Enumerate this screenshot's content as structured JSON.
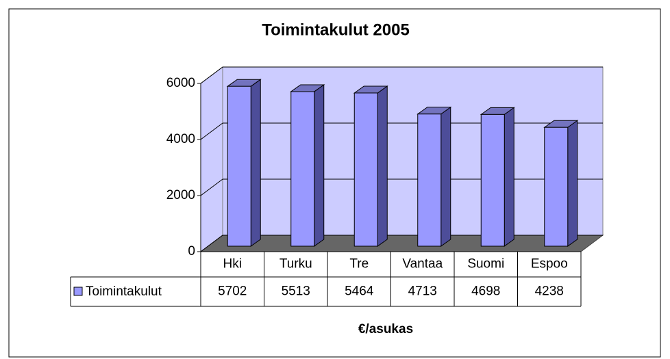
{
  "chart_data": {
    "type": "bar3d",
    "title": "Toimintakulut 2005",
    "x_label": "€/asukas",
    "categories": [
      "Hki",
      "Turku",
      "Tre",
      "Vantaa",
      "Suomi",
      "Espoo"
    ],
    "series": [
      {
        "name": "Toimintakulut",
        "color": "#9999ff",
        "values": [
          5702,
          5513,
          5464,
          4713,
          4698,
          4238
        ]
      }
    ],
    "ylim": [
      0,
      6000
    ],
    "yticks": [
      0,
      2000,
      4000,
      6000
    ],
    "grid": true,
    "data_table": true
  }
}
